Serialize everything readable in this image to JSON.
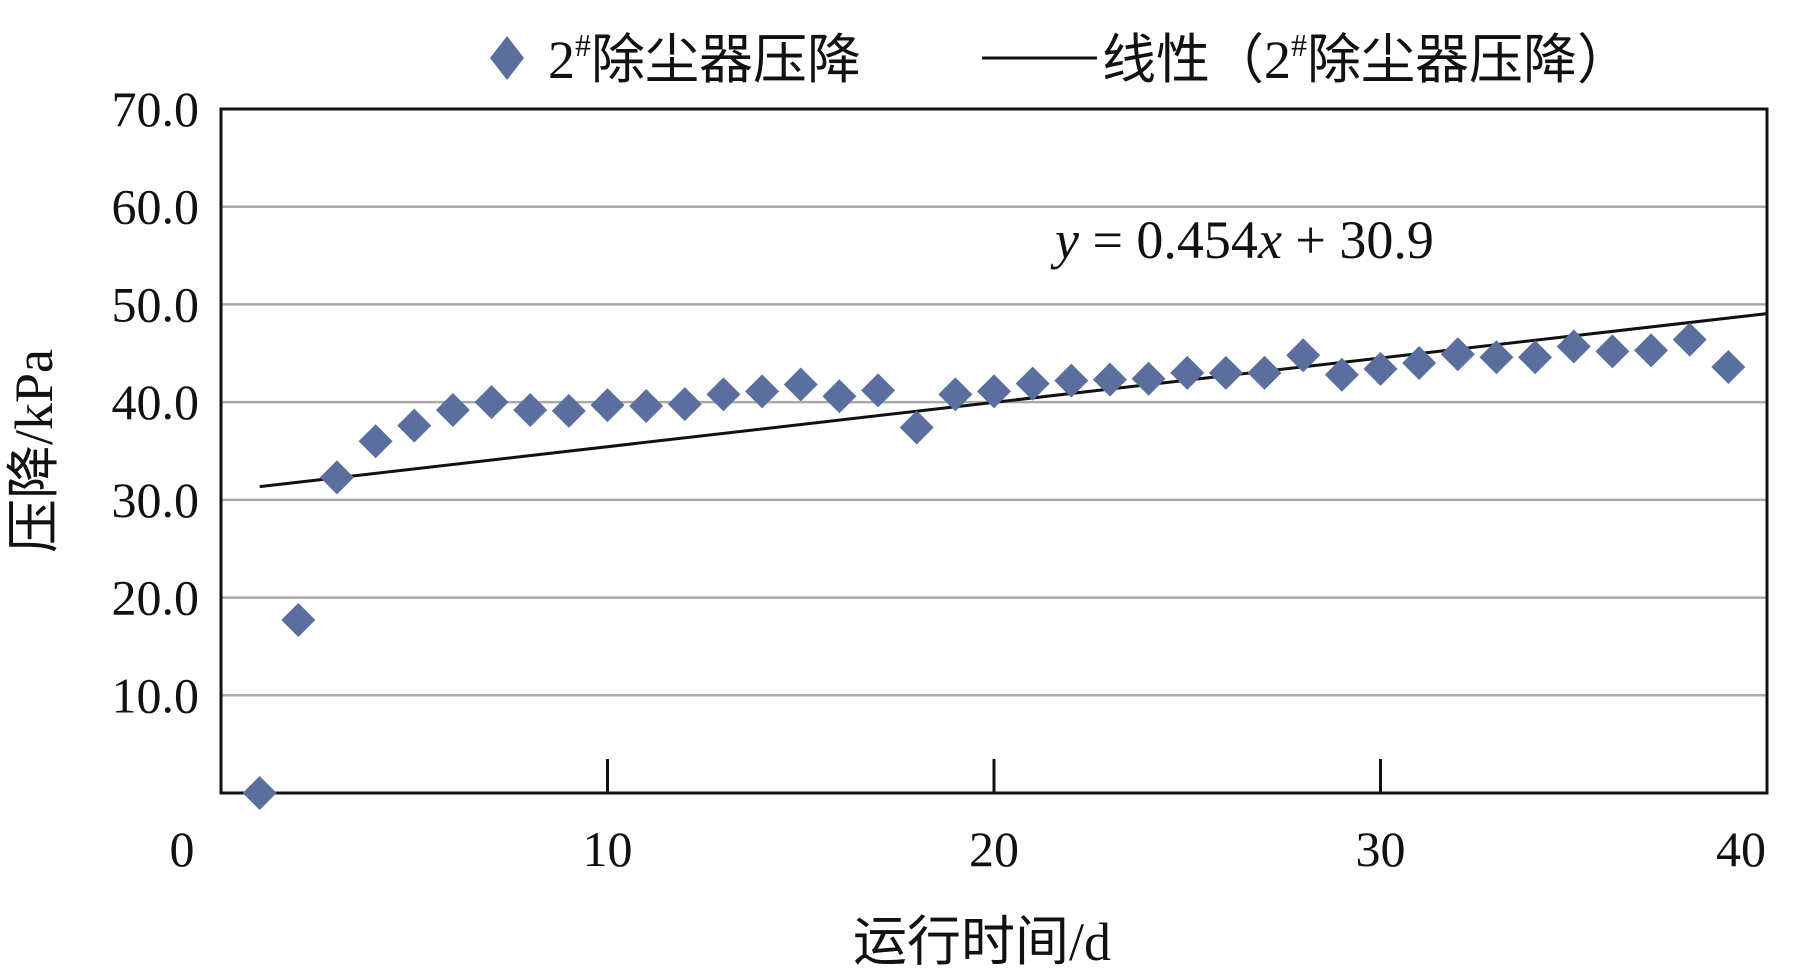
{
  "chart_data": {
    "type": "scatter",
    "xlabel": "运行时间/d",
    "ylabel": "压降/kPa",
    "xlim": [
      0,
      40
    ],
    "ylim": [
      0,
      70
    ],
    "x_ticks": [
      0,
      10,
      20,
      30,
      40
    ],
    "x_tick_labels": [
      "0",
      "10",
      "20",
      "30",
      "40"
    ],
    "y_ticks": [
      10,
      20,
      30,
      40,
      50,
      60,
      70
    ],
    "y_tick_labels": [
      "10.0",
      "20.0",
      "30.0",
      "40.0",
      "50.0",
      "60.0",
      "70.0"
    ],
    "grid": "horizontal",
    "legend": {
      "placement": "top",
      "scatter_label_main": "2",
      "scatter_label_sup": "#",
      "scatter_label_rest": "除尘器压降",
      "line_label_pre": "线性（2",
      "line_label_sup": "#",
      "line_label_rest": "除尘器压降）"
    },
    "series": [
      {
        "name": "2#除尘器压降",
        "marker": "diamond",
        "color": "#5b6f9e",
        "x": [
          1,
          2,
          3,
          4,
          5,
          6,
          7,
          8,
          9,
          10,
          11,
          12,
          13,
          14,
          15,
          16,
          17,
          18,
          19,
          20,
          21,
          22,
          23,
          24,
          25,
          26,
          27,
          28,
          29,
          30,
          31,
          32,
          33,
          34,
          35,
          36,
          37,
          38,
          39
        ],
        "y": [
          0.0,
          17.7,
          32.3,
          36.0,
          37.6,
          39.2,
          40.0,
          39.2,
          39.1,
          39.7,
          39.6,
          39.8,
          40.8,
          41.1,
          41.8,
          40.6,
          41.2,
          37.4,
          40.8,
          41.1,
          41.9,
          42.2,
          42.3,
          42.4,
          43.0,
          43.0,
          43.0,
          44.8,
          42.8,
          43.4,
          44.0,
          44.9,
          44.6,
          44.6,
          45.7,
          45.2,
          45.3,
          46.4,
          43.6
        ]
      }
    ],
    "trendline": {
      "name": "线性（2#除尘器压降）",
      "type": "linear",
      "slope": 0.454,
      "intercept": 30.9,
      "x_range": [
        1,
        40
      ],
      "color": "#111111",
      "equation_y": "y",
      "equation_mid": " = 0.454",
      "equation_x": "x",
      "equation_end": " + 30.9"
    }
  }
}
